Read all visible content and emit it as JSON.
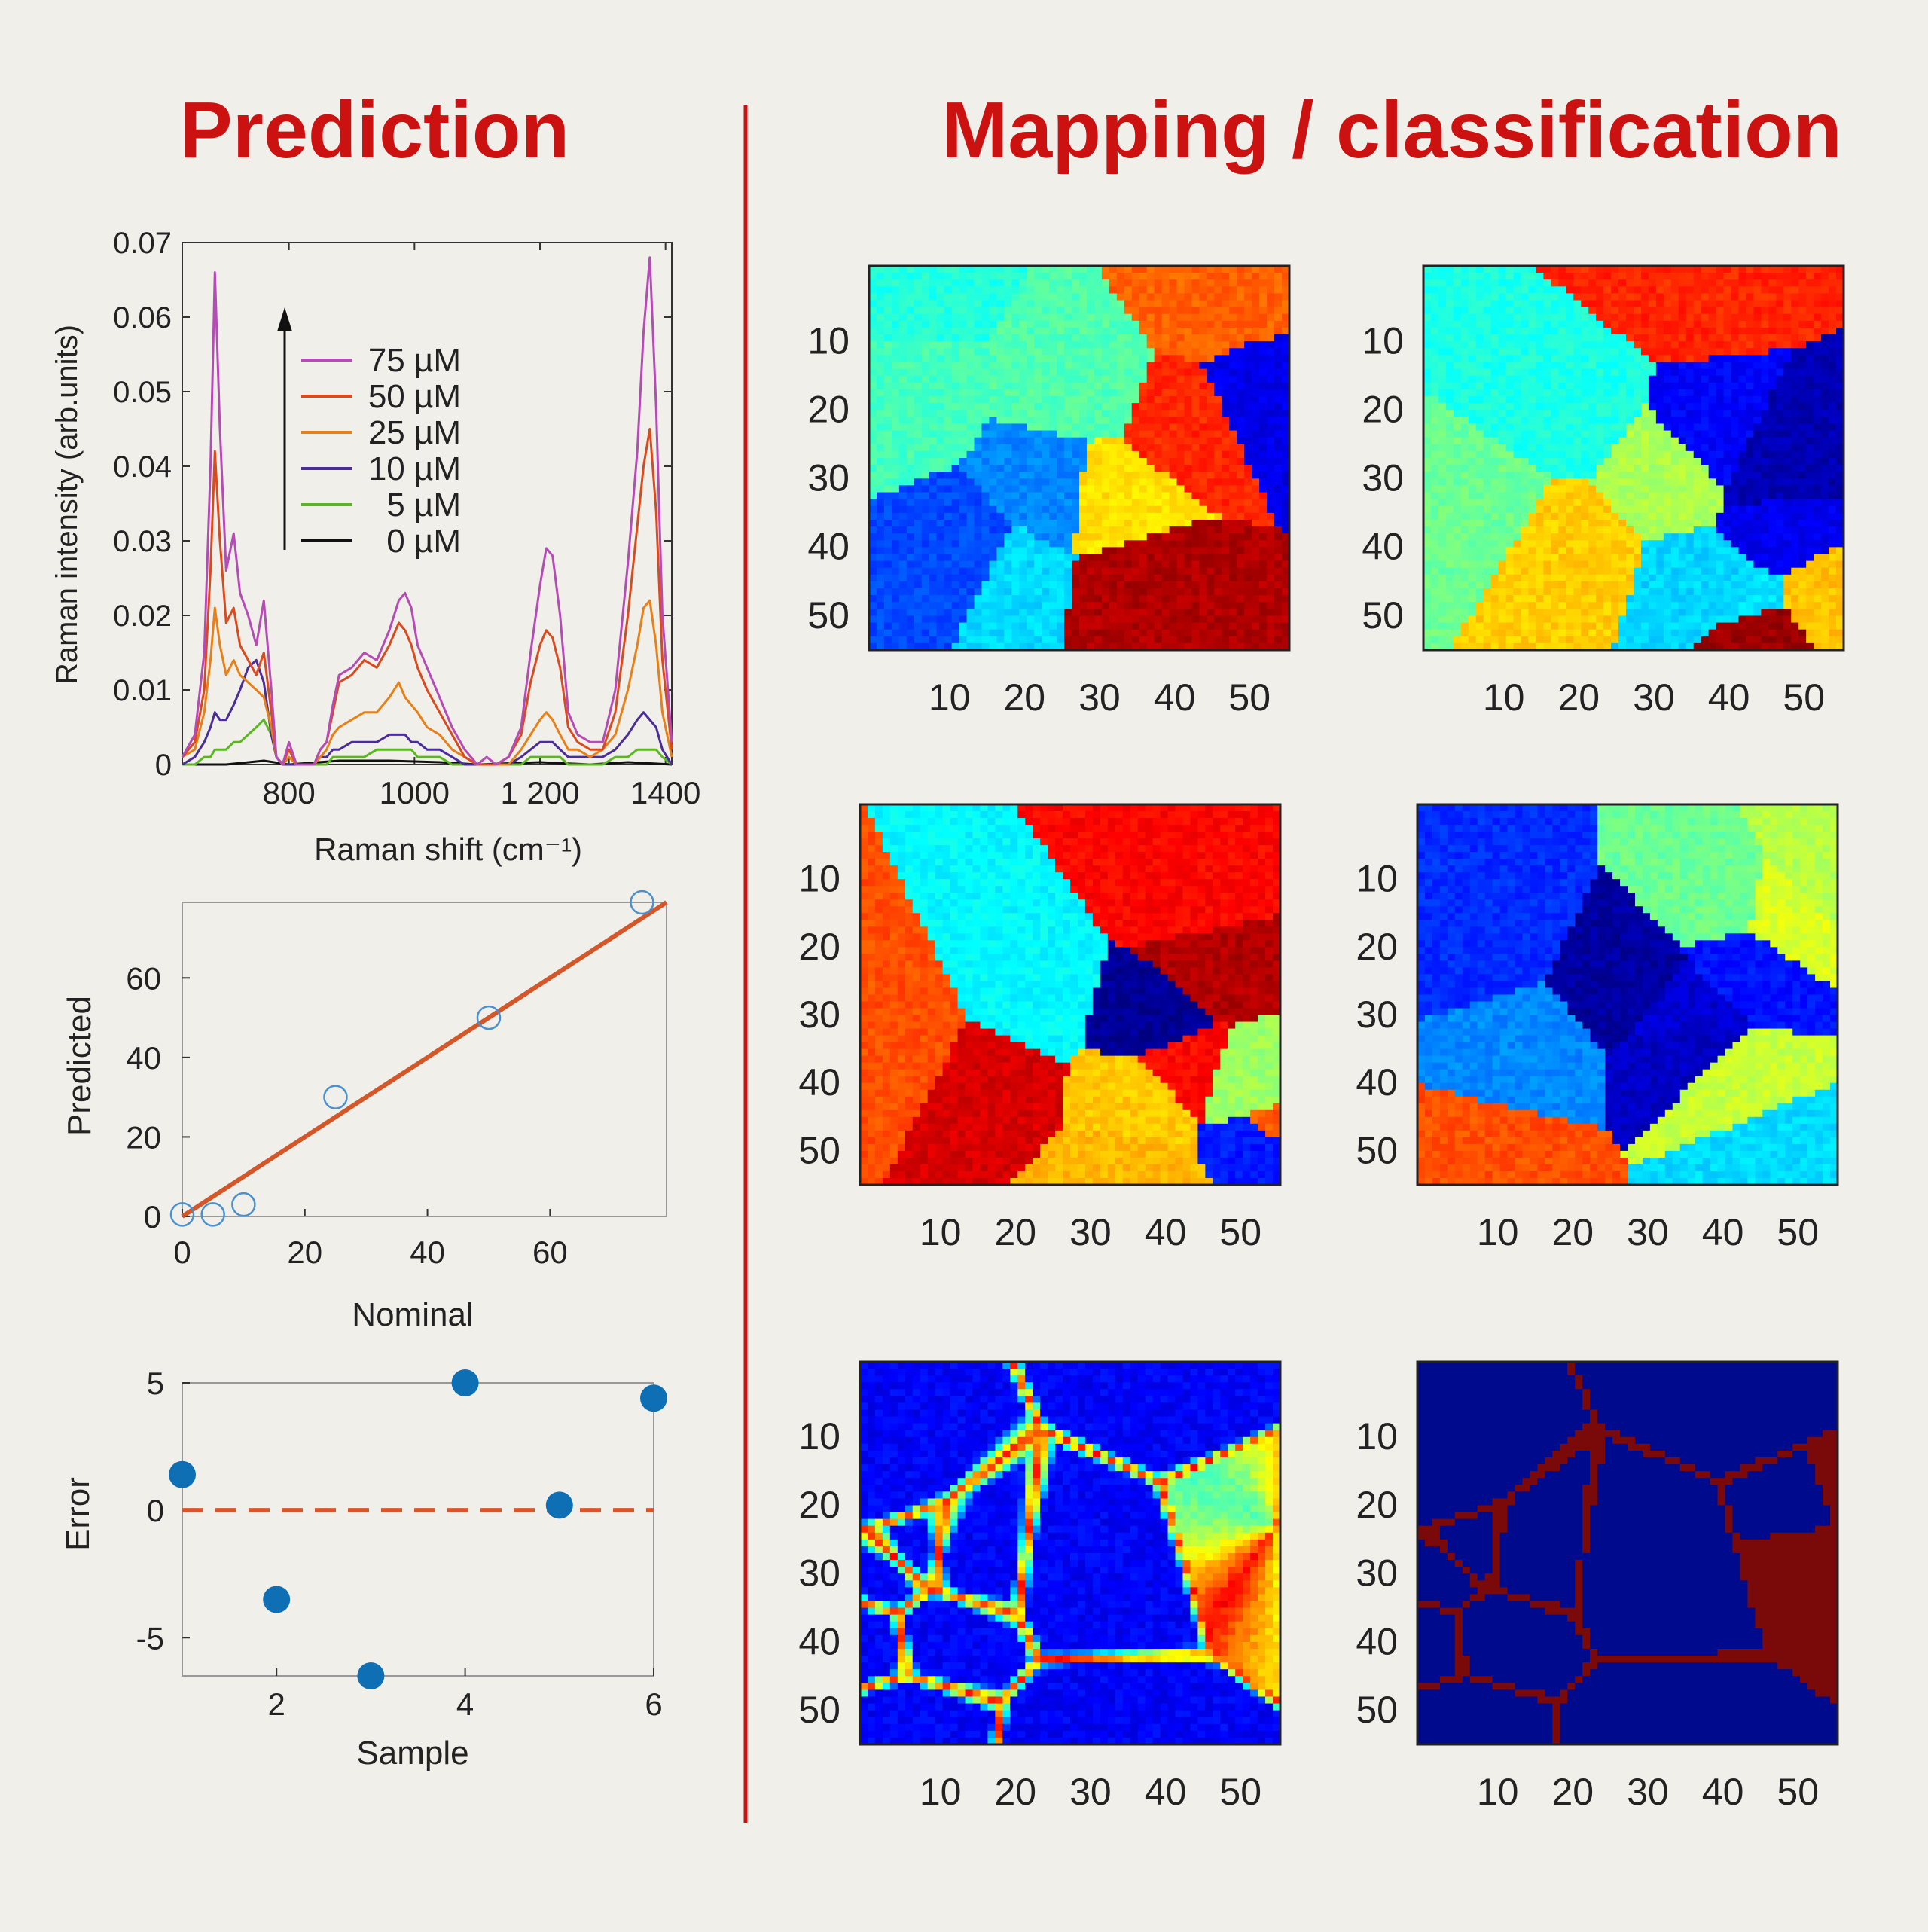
{
  "colors": {
    "background": "#f0efea",
    "title": "#cc1111",
    "divider": "#cc1111",
    "fit_line": "#d4572a",
    "scatter_open": "#4a90d0",
    "error_point": "#0e6fb5",
    "zero_line": "#d4572a"
  },
  "titles": {
    "left": "Prediction",
    "right": "Mapping / classification"
  },
  "chart_data": [
    {
      "type": "line",
      "xlabel": "Raman shift (cm⁻¹)",
      "ylabel": "Raman intensity (arb.units)",
      "xlim": [
        630,
        1410
      ],
      "ylim": [
        0,
        0.07
      ],
      "xticks": [
        800,
        1000,
        1200,
        1400
      ],
      "xtick_labels": [
        "800",
        "1000",
        "1 200",
        "1400"
      ],
      "yticks": [
        0,
        0.01,
        0.02,
        0.03,
        0.04,
        0.05,
        0.06,
        0.07
      ],
      "ytick_labels": [
        "0",
        "0.01",
        "0.02",
        "0.03",
        "0.04",
        "0.05",
        "0.06",
        "0.07"
      ],
      "legend_position": "top-left",
      "arrow": "increasing concentration",
      "series": [
        {
          "name": "75 µM",
          "color": "#b54bb5",
          "x": [
            630,
            650,
            665,
            675,
            682,
            690,
            700,
            712,
            722,
            735,
            748,
            760,
            772,
            780,
            790,
            800,
            812,
            825,
            840,
            850,
            860,
            870,
            880,
            900,
            920,
            940,
            960,
            975,
            985,
            995,
            1005,
            1020,
            1040,
            1060,
            1080,
            1100,
            1115,
            1130,
            1150,
            1170,
            1185,
            1200,
            1210,
            1220,
            1232,
            1245,
            1260,
            1280,
            1300,
            1320,
            1340,
            1355,
            1365,
            1375,
            1385,
            1395,
            1410
          ],
          "y": [
            0.001,
            0.004,
            0.015,
            0.04,
            0.066,
            0.045,
            0.026,
            0.031,
            0.023,
            0.02,
            0.016,
            0.022,
            0.01,
            0.001,
            0,
            0.003,
            0,
            0,
            0,
            0.002,
            0.003,
            0.008,
            0.012,
            0.013,
            0.015,
            0.014,
            0.018,
            0.022,
            0.023,
            0.021,
            0.016,
            0.013,
            0.009,
            0.005,
            0.002,
            0,
            0.001,
            0,
            0.001,
            0.005,
            0.015,
            0.024,
            0.029,
            0.028,
            0.02,
            0.007,
            0.004,
            0.003,
            0.003,
            0.01,
            0.027,
            0.042,
            0.058,
            0.068,
            0.048,
            0.02,
            0.003
          ]
        },
        {
          "name": "50 µM",
          "color": "#d94a1e",
          "x": [
            630,
            650,
            665,
            675,
            682,
            690,
            700,
            712,
            722,
            735,
            748,
            760,
            772,
            780,
            790,
            800,
            812,
            825,
            840,
            850,
            860,
            870,
            880,
            900,
            920,
            940,
            960,
            975,
            985,
            995,
            1005,
            1020,
            1040,
            1060,
            1080,
            1100,
            1115,
            1130,
            1150,
            1170,
            1185,
            1200,
            1210,
            1220,
            1232,
            1245,
            1260,
            1280,
            1300,
            1320,
            1340,
            1355,
            1365,
            1375,
            1385,
            1395,
            1410
          ],
          "y": [
            0.001,
            0.003,
            0.01,
            0.026,
            0.042,
            0.03,
            0.019,
            0.021,
            0.016,
            0.014,
            0.012,
            0.015,
            0.007,
            0.001,
            0,
            0.002,
            0,
            0,
            0,
            0.002,
            0.003,
            0.007,
            0.011,
            0.012,
            0.014,
            0.013,
            0.016,
            0.019,
            0.018,
            0.016,
            0.013,
            0.01,
            0.007,
            0.004,
            0.001,
            0,
            0,
            0,
            0.001,
            0.004,
            0.011,
            0.016,
            0.018,
            0.017,
            0.013,
            0.005,
            0.003,
            0.002,
            0.002,
            0.007,
            0.02,
            0.032,
            0.04,
            0.045,
            0.034,
            0.014,
            0.002
          ]
        },
        {
          "name": "25 µM",
          "color": "#e8801a",
          "x": [
            630,
            650,
            665,
            675,
            682,
            690,
            700,
            712,
            722,
            735,
            748,
            760,
            772,
            780,
            790,
            800,
            812,
            825,
            840,
            850,
            860,
            870,
            880,
            900,
            920,
            940,
            960,
            975,
            985,
            995,
            1005,
            1020,
            1040,
            1060,
            1080,
            1100,
            1115,
            1130,
            1150,
            1170,
            1185,
            1200,
            1210,
            1220,
            1232,
            1245,
            1260,
            1280,
            1300,
            1320,
            1340,
            1355,
            1365,
            1375,
            1385,
            1395,
            1410
          ],
          "y": [
            0.001,
            0.002,
            0.007,
            0.014,
            0.021,
            0.016,
            0.012,
            0.014,
            0.012,
            0.011,
            0.01,
            0.009,
            0.005,
            0.001,
            0,
            0.001,
            0,
            0,
            0,
            0.001,
            0.002,
            0.004,
            0.005,
            0.006,
            0.007,
            0.007,
            0.009,
            0.011,
            0.009,
            0.008,
            0.007,
            0.005,
            0.004,
            0.002,
            0.001,
            0,
            0,
            0,
            0,
            0.002,
            0.004,
            0.006,
            0.007,
            0.006,
            0.004,
            0.002,
            0.002,
            0.001,
            0.002,
            0.004,
            0.01,
            0.016,
            0.021,
            0.022,
            0.016,
            0.007,
            0.001
          ]
        },
        {
          "name": "10 µM",
          "color": "#4a2d9a",
          "x": [
            630,
            650,
            665,
            675,
            682,
            690,
            700,
            712,
            722,
            735,
            748,
            760,
            772,
            780,
            790,
            800,
            812,
            825,
            840,
            850,
            860,
            870,
            880,
            900,
            920,
            940,
            960,
            975,
            985,
            995,
            1005,
            1020,
            1040,
            1060,
            1080,
            1100,
            1115,
            1130,
            1150,
            1170,
            1185,
            1200,
            1210,
            1220,
            1232,
            1245,
            1260,
            1280,
            1300,
            1320,
            1340,
            1355,
            1365,
            1375,
            1385,
            1395,
            1410
          ],
          "y": [
            0,
            0.001,
            0.003,
            0.005,
            0.007,
            0.006,
            0.006,
            0.008,
            0.01,
            0.013,
            0.014,
            0.011,
            0.004,
            0.001,
            0,
            0,
            0,
            0,
            0,
            0.001,
            0.001,
            0.002,
            0.002,
            0.003,
            0.003,
            0.003,
            0.004,
            0.004,
            0.004,
            0.003,
            0.003,
            0.002,
            0.002,
            0.001,
            0,
            0,
            0,
            0,
            0,
            0.001,
            0.002,
            0.003,
            0.003,
            0.003,
            0.002,
            0.001,
            0.001,
            0.001,
            0.001,
            0.002,
            0.004,
            0.006,
            0.007,
            0.006,
            0.005,
            0.002,
            0
          ]
        },
        {
          "name": "5 µM",
          "color": "#5bb71f",
          "x": [
            630,
            650,
            665,
            675,
            682,
            690,
            700,
            712,
            722,
            735,
            748,
            760,
            772,
            780,
            790,
            800,
            812,
            825,
            840,
            850,
            860,
            870,
            880,
            900,
            920,
            940,
            960,
            975,
            985,
            995,
            1005,
            1020,
            1040,
            1060,
            1080,
            1100,
            1115,
            1130,
            1150,
            1170,
            1185,
            1200,
            1210,
            1220,
            1232,
            1245,
            1260,
            1280,
            1300,
            1320,
            1340,
            1355,
            1365,
            1375,
            1385,
            1395,
            1410
          ],
          "y": [
            0,
            0,
            0.001,
            0.001,
            0.002,
            0.002,
            0.002,
            0.003,
            0.003,
            0.004,
            0.005,
            0.006,
            0.004,
            0.001,
            0,
            0,
            0,
            0,
            0,
            0,
            0,
            0.001,
            0.001,
            0.001,
            0.001,
            0.002,
            0.002,
            0.002,
            0.002,
            0.002,
            0.001,
            0.001,
            0.001,
            0,
            0,
            0,
            0,
            0,
            0,
            0,
            0.001,
            0.001,
            0.001,
            0.001,
            0.001,
            0,
            0,
            0,
            0,
            0.001,
            0.001,
            0.002,
            0.002,
            0.002,
            0.002,
            0.001,
            0
          ]
        },
        {
          "name": "0 µM",
          "color": "#111111",
          "x": [
            630,
            700,
            760,
            800,
            880,
            960,
            1040,
            1100,
            1200,
            1280,
            1340,
            1410
          ],
          "y": [
            0,
            0,
            0.0005,
            0,
            0.0005,
            0.0005,
            0.0003,
            0,
            0.0003,
            0,
            0.0003,
            0
          ]
        }
      ]
    },
    {
      "type": "scatter",
      "xlabel": "Nominal",
      "ylabel": "Predicted",
      "xlim": [
        0,
        79
      ],
      "ylim": [
        0,
        79
      ],
      "xticks": [
        0,
        20,
        40,
        60
      ],
      "yticks": [
        0,
        20,
        40,
        60
      ],
      "points": {
        "x": [
          0,
          5,
          10,
          25,
          50,
          75
        ],
        "y": [
          0.5,
          0.5,
          3,
          30,
          50,
          79
        ]
      },
      "fit_line": {
        "x": [
          0,
          79
        ],
        "y": [
          0,
          79
        ]
      }
    },
    {
      "type": "scatter",
      "xlabel": "Sample",
      "ylabel": "Error",
      "xlim": [
        1,
        6
      ],
      "ylim": [
        -6.5,
        5
      ],
      "xticks": [
        2,
        4,
        6
      ],
      "yticks": [
        -5,
        0,
        5
      ],
      "ytick_labels": [
        "-5",
        "0",
        "5"
      ],
      "points": {
        "x": [
          1,
          2,
          3,
          4,
          5,
          6
        ],
        "y": [
          1.4,
          -3.5,
          -6.5,
          5,
          0.2,
          4.4
        ]
      },
      "reference_line": 0
    },
    {
      "type": "heatmap",
      "maps": [
        {
          "id": "map-1",
          "seed": 11
        },
        {
          "id": "map-2",
          "seed": 23
        },
        {
          "id": "map-3",
          "seed": 37
        },
        {
          "id": "map-4",
          "seed": 41
        },
        {
          "id": "map-5",
          "seed": 53,
          "style": "boundaries-continuous"
        },
        {
          "id": "map-6",
          "seed": 53,
          "style": "boundaries-binary"
        }
      ],
      "grid_size": 56,
      "xticks": [
        10,
        20,
        30,
        40,
        50
      ],
      "yticks": [
        10,
        20,
        30,
        40,
        50
      ],
      "colormap": "jet"
    }
  ]
}
